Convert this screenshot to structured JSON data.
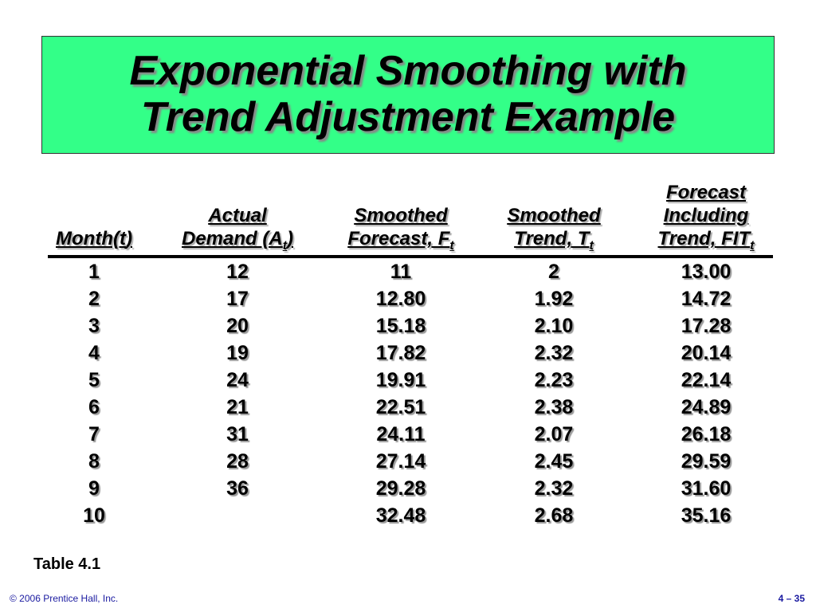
{
  "title": {
    "lines": [
      "Exponential Smoothing with",
      "Trend Adjustment Example"
    ]
  },
  "table": {
    "headers": [
      [
        [
          {
            "text": "Month("
          },
          {
            "text": "t"
          },
          {
            "text": ")"
          }
        ]
      ],
      [
        [
          {
            "text": "Actual"
          }
        ],
        [
          {
            "text": "Demand ("
          },
          {
            "text": "A"
          },
          {
            "text": "t",
            "sub": true
          },
          {
            "text": ")"
          }
        ]
      ],
      [
        [
          {
            "text": "Smoothed"
          }
        ],
        [
          {
            "text": "Forecast, F"
          },
          {
            "text": "t",
            "sub": true
          }
        ]
      ],
      [
        [
          {
            "text": "Smoothed"
          }
        ],
        [
          {
            "text": "Trend, T"
          },
          {
            "text": "t",
            "sub": true
          }
        ]
      ],
      [
        [
          {
            "text": "Forecast"
          }
        ],
        [
          {
            "text": "Including"
          }
        ],
        [
          {
            "text": "Trend, FIT"
          },
          {
            "text": "t",
            "sub": true
          }
        ]
      ]
    ],
    "rows": [
      [
        "1",
        "12",
        "11",
        "2",
        "13.00"
      ],
      [
        "2",
        "17",
        "12.80",
        "1.92",
        "14.72"
      ],
      [
        "3",
        "20",
        "15.18",
        "2.10",
        "17.28"
      ],
      [
        "4",
        "19",
        "17.82",
        "2.32",
        "20.14"
      ],
      [
        "5",
        "24",
        "19.91",
        "2.23",
        "22.14"
      ],
      [
        "6",
        "21",
        "22.51",
        "2.38",
        "24.89"
      ],
      [
        "7",
        "31",
        "24.11",
        "2.07",
        "26.18"
      ],
      [
        "8",
        "28",
        "27.14",
        "2.45",
        "29.59"
      ],
      [
        "9",
        "36",
        "29.28",
        "2.32",
        "31.60"
      ],
      [
        "10",
        null,
        "32.48",
        "2.68",
        "35.16"
      ]
    ],
    "caption": "Table 4.1"
  },
  "footer": {
    "copyright": "© 2006 Prentice Hall, Inc.",
    "page": "4 – 35"
  }
}
